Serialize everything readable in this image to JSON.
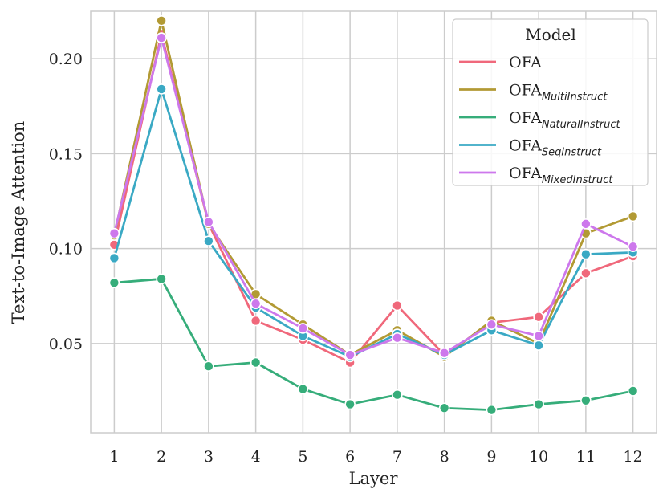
{
  "chart_data": {
    "type": "line",
    "title": "",
    "xlabel": "Layer",
    "ylabel": "Text-to-Image Attention",
    "x": [
      1,
      2,
      3,
      4,
      5,
      6,
      7,
      8,
      9,
      10,
      11,
      12
    ],
    "xlim": [
      0.5,
      12.5
    ],
    "ylim": [
      0.003,
      0.225
    ],
    "yticks": [
      0.05,
      0.1,
      0.15,
      0.2
    ],
    "ytick_labels": [
      "0.05",
      "0.10",
      "0.15",
      "0.20"
    ],
    "grid": true,
    "legend": {
      "title": "Model",
      "position": "top-right"
    },
    "series": [
      {
        "name": "OFA",
        "base": "OFA",
        "sub": "",
        "color": "#f0687b",
        "values": [
          0.102,
          0.213,
          0.113,
          0.062,
          0.052,
          0.04,
          0.07,
          0.044,
          0.061,
          0.064,
          0.087,
          0.096
        ]
      },
      {
        "name": "OFA_MultiInstruct",
        "base": "OFA",
        "sub": "MultiInstruct",
        "color": "#b29a34",
        "values": [
          0.107,
          0.22,
          0.113,
          0.076,
          0.06,
          0.044,
          0.057,
          0.043,
          0.062,
          0.05,
          0.108,
          0.117
        ]
      },
      {
        "name": "OFA_NaturalInstruct",
        "base": "OFA",
        "sub": "NaturalInstruct",
        "color": "#36ad7a",
        "values": [
          0.082,
          0.084,
          0.038,
          0.04,
          0.026,
          0.018,
          0.023,
          0.016,
          0.015,
          0.018,
          0.02,
          0.025
        ]
      },
      {
        "name": "OFA_SeqInstruct",
        "base": "OFA",
        "sub": "SeqInstruct",
        "color": "#3aa9c4",
        "values": [
          0.095,
          0.184,
          0.104,
          0.069,
          0.054,
          0.043,
          0.055,
          0.044,
          0.057,
          0.049,
          0.097,
          0.098
        ]
      },
      {
        "name": "OFA_MixedInstruct",
        "base": "OFA",
        "sub": "MixedInstruct",
        "color": "#cd78ec",
        "values": [
          0.108,
          0.211,
          0.114,
          0.071,
          0.058,
          0.044,
          0.053,
          0.045,
          0.06,
          0.054,
          0.113,
          0.101
        ]
      }
    ]
  }
}
